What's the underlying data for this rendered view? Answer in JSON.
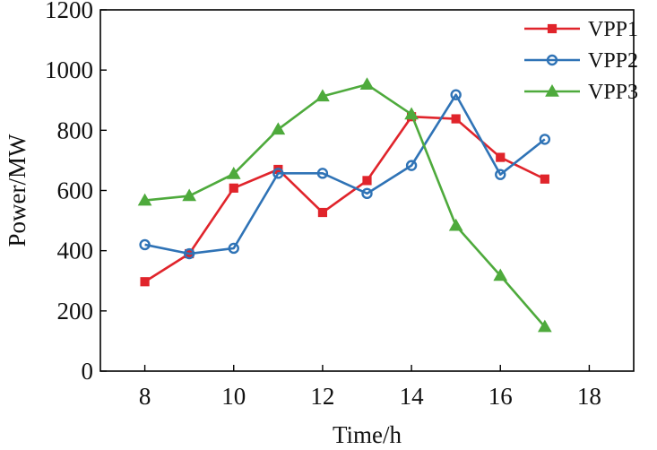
{
  "chart_data": {
    "type": "line",
    "title": "",
    "xlabel": "Time/h",
    "ylabel": "Power/MW",
    "xlim": [
      7,
      19
    ],
    "ylim": [
      0,
      1200
    ],
    "xticks": [
      8,
      10,
      12,
      14,
      16,
      18
    ],
    "yticks": [
      0,
      200,
      400,
      600,
      800,
      1000,
      1200
    ],
    "grid": false,
    "legend_position": "top-right",
    "x": [
      8,
      9,
      10,
      11,
      12,
      13,
      14,
      15,
      16,
      17
    ],
    "series": [
      {
        "name": "VPP1",
        "color": "#e0242b",
        "marker": "square",
        "values": [
          297,
          390,
          608,
          670,
          527,
          633,
          845,
          838,
          710,
          638
        ]
      },
      {
        "name": "VPP2",
        "color": "#2f73b6",
        "marker": "circle",
        "values": [
          420,
          390,
          408,
          657,
          657,
          590,
          683,
          918,
          653,
          770
        ]
      },
      {
        "name": "VPP3",
        "color": "#4eaa3c",
        "marker": "triangle",
        "values": [
          567,
          582,
          655,
          803,
          913,
          952,
          853,
          483,
          317,
          147
        ]
      }
    ]
  }
}
